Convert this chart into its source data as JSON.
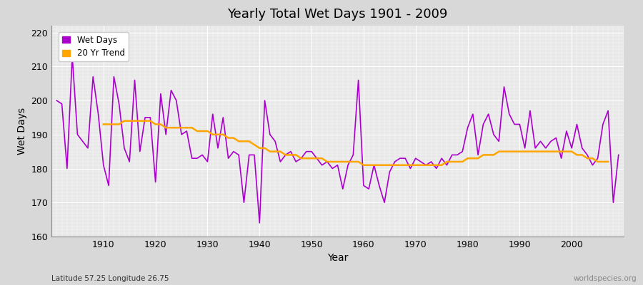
{
  "title": "Yearly Total Wet Days 1901 - 2009",
  "xlabel": "Year",
  "ylabel": "Wet Days",
  "subtitle": "Latitude 57.25 Longitude 26.75",
  "watermark": "worldspecies.org",
  "ylim": [
    160,
    222
  ],
  "yticks": [
    160,
    170,
    180,
    190,
    200,
    210,
    220
  ],
  "xlim": [
    1900,
    2010
  ],
  "line_color": "#AA00CC",
  "trend_color": "#FFA500",
  "fig_bg_color": "#D8D8D8",
  "plot_bg": "#E8E8E8",
  "legend_labels": [
    "Wet Days",
    "20 Yr Trend"
  ],
  "years": [
    1901,
    1902,
    1903,
    1904,
    1905,
    1906,
    1907,
    1908,
    1909,
    1910,
    1911,
    1912,
    1913,
    1914,
    1915,
    1916,
    1917,
    1918,
    1919,
    1920,
    1921,
    1922,
    1923,
    1924,
    1925,
    1926,
    1927,
    1928,
    1929,
    1930,
    1931,
    1932,
    1933,
    1934,
    1935,
    1936,
    1937,
    1938,
    1939,
    1940,
    1941,
    1942,
    1943,
    1944,
    1945,
    1946,
    1947,
    1948,
    1949,
    1950,
    1951,
    1952,
    1953,
    1954,
    1955,
    1956,
    1957,
    1958,
    1959,
    1960,
    1961,
    1962,
    1963,
    1964,
    1965,
    1966,
    1967,
    1968,
    1969,
    1970,
    1971,
    1972,
    1973,
    1974,
    1975,
    1976,
    1977,
    1978,
    1979,
    1980,
    1981,
    1982,
    1983,
    1984,
    1985,
    1986,
    1987,
    1988,
    1989,
    1990,
    1991,
    1992,
    1993,
    1994,
    1995,
    1996,
    1997,
    1998,
    1999,
    2000,
    2001,
    2002,
    2003,
    2004,
    2005,
    2006,
    2007,
    2008,
    2009
  ],
  "wet_days": [
    200,
    199,
    180,
    213,
    190,
    188,
    186,
    207,
    196,
    181,
    175,
    207,
    199,
    186,
    182,
    206,
    185,
    195,
    195,
    176,
    202,
    190,
    203,
    200,
    190,
    191,
    183,
    183,
    184,
    182,
    196,
    186,
    195,
    183,
    185,
    184,
    170,
    184,
    184,
    164,
    200,
    190,
    188,
    182,
    184,
    185,
    182,
    183,
    185,
    185,
    183,
    181,
    182,
    180,
    181,
    174,
    181,
    184,
    206,
    175,
    174,
    181,
    175,
    170,
    179,
    182,
    183,
    183,
    180,
    183,
    182,
    181,
    182,
    180,
    183,
    181,
    184,
    184,
    185,
    192,
    196,
    184,
    193,
    196,
    190,
    188,
    204,
    196,
    193,
    193,
    186,
    197,
    186,
    188,
    186,
    188,
    189,
    183,
    191,
    186,
    193,
    186,
    184,
    181,
    183,
    193,
    197,
    170,
    184
  ],
  "trend": [
    null,
    null,
    null,
    null,
    null,
    null,
    null,
    null,
    null,
    193,
    193,
    193,
    193,
    194,
    194,
    194,
    194,
    194,
    194,
    193,
    193,
    192,
    192,
    192,
    192,
    192,
    192,
    191,
    191,
    191,
    190,
    190,
    190,
    189,
    189,
    188,
    188,
    188,
    187,
    186,
    186,
    185,
    185,
    185,
    184,
    184,
    184,
    183,
    183,
    183,
    183,
    183,
    182,
    182,
    182,
    182,
    182,
    182,
    182,
    181,
    181,
    181,
    181,
    181,
    181,
    181,
    181,
    181,
    181,
    181,
    181,
    181,
    181,
    181,
    181,
    182,
    182,
    182,
    182,
    183,
    183,
    183,
    184,
    184,
    184,
    185,
    185,
    185,
    185,
    185,
    185,
    185,
    185,
    185,
    185,
    185,
    185,
    185,
    185,
    185,
    184,
    184,
    183,
    183,
    182,
    182,
    182,
    null
  ]
}
